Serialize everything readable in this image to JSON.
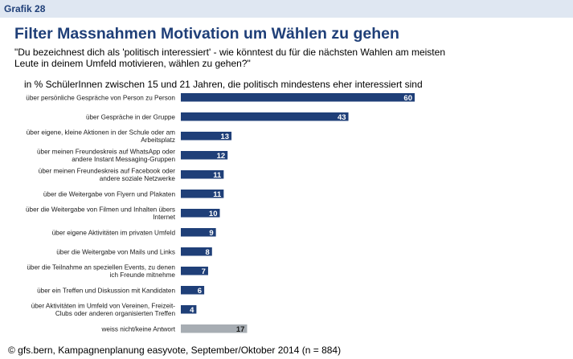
{
  "figure_label": "Grafik 28",
  "chart_data": {
    "type": "bar",
    "orientation": "horizontal",
    "title": "Filter Massnahmen Motivation um Wählen zu gehen",
    "question": "\"Du bezeichnest dich als 'politisch interessiert' - wie könntest du für die nächsten Wahlen am meisten Leute in deinem Umfeld motivieren, wählen zu gehen?\"",
    "subtitle": "in % SchülerInnen zwischen 15 und 21 Jahren, die politisch mindestens eher interessiert sind",
    "categories": [
      [
        "über persönliche Gespräche von Person zu Person"
      ],
      [
        "über Gespräche in der Gruppe"
      ],
      [
        "über eigene, kleine Aktionen in der Schule oder am",
        "Arbeitsplatz"
      ],
      [
        "über meinen Freundeskreis auf WhatsApp oder",
        "andere Instant Messaging-Gruppen"
      ],
      [
        "über meinen Freundeskreis auf Facebook oder",
        "andere soziale Netzwerke"
      ],
      [
        "über die Weitergabe von Flyern und Plakaten"
      ],
      [
        "über die Weitergabe von Filmen und Inhalten übers",
        "Internet"
      ],
      [
        "über eigene Aktivitäten im privaten Umfeld"
      ],
      [
        "über die Weitergabe von Mails und Links"
      ],
      [
        "über die Teilnahme an speziellen Events, zu denen",
        "ich Freunde mitnehme"
      ],
      [
        "über ein Treffen und Diskussion mit Kandidaten"
      ],
      [
        "über Aktivitäten im Umfeld von Vereinen, Freizeit-",
        "Clubs oder anderen organisierten Treffen"
      ],
      [
        "weiss nicht/keine Antwort"
      ]
    ],
    "values": [
      60,
      43,
      13,
      12,
      11,
      11,
      10,
      9,
      8,
      7,
      6,
      4,
      17
    ],
    "bar_colors": [
      "#1f3f78",
      "#1f3f78",
      "#1f3f78",
      "#1f3f78",
      "#1f3f78",
      "#1f3f78",
      "#1f3f78",
      "#1f3f78",
      "#1f3f78",
      "#1f3f78",
      "#1f3f78",
      "#1f3f78",
      "#a7adb3"
    ],
    "xlim": [
      0,
      60
    ],
    "grid": false,
    "legend": "none"
  },
  "footer": "© gfs.bern, Kampagnenplanung easyvote, September/Oktober 2014 (n = 884)"
}
